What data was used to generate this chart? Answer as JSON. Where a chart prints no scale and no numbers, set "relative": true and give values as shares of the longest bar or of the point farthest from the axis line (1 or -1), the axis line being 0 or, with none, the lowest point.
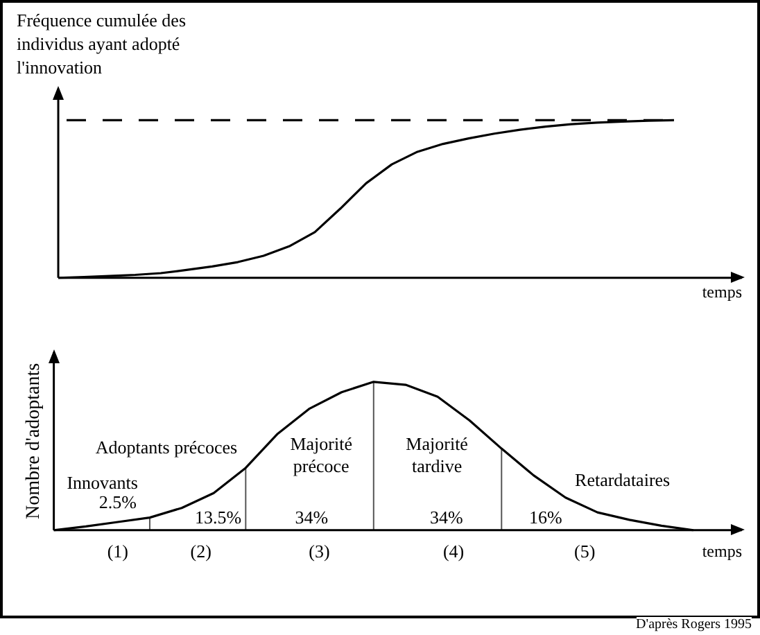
{
  "chart_data": [
    {
      "type": "line",
      "relative": true,
      "ylabel": "Fréquence cumulée des individus ayant adopté l'innovation",
      "xlabel": "temps",
      "grid": false,
      "legend": false,
      "marker": "none",
      "categories": [
        null,
        null,
        null,
        null,
        null,
        null,
        null,
        null,
        null,
        null,
        null,
        null,
        null,
        null,
        null,
        null,
        null,
        null,
        null,
        null,
        null,
        null,
        null,
        null,
        null
      ],
      "series": [
        {
          "color": "#000000",
          "values": [
            0,
            0.005,
            0.012,
            0.019,
            0.03,
            0.05,
            0.072,
            0.1,
            0.14,
            0.2,
            0.29,
            0.44,
            0.6,
            0.72,
            0.8,
            0.85,
            0.885,
            0.915,
            0.94,
            0.96,
            0.975,
            0.985,
            0.992,
            0.997,
            1
          ]
        }
      ],
      "ref_lines": [
        {
          "axis": "y",
          "value": 1,
          "line_style": "dashed",
          "color": "#000000"
        }
      ]
    },
    {
      "type": "line",
      "relative": true,
      "ylabel": "Nombre d'adoptants",
      "xlabel": "temps",
      "grid": false,
      "legend": false,
      "marker": "none",
      "categories": [
        null,
        null,
        null,
        null,
        null,
        null,
        null,
        null,
        null,
        null,
        null,
        null,
        null,
        null,
        null,
        null,
        null,
        null,
        null,
        null,
        null
      ],
      "series": [
        {
          "color": "#000000",
          "values": [
            0,
            0.025,
            0.055,
            0.085,
            0.15,
            0.25,
            0.42,
            0.65,
            0.82,
            0.93,
            1,
            0.98,
            0.9,
            0.74,
            0.55,
            0.37,
            0.22,
            0.12,
            0.07,
            0.03,
            0
          ]
        }
      ],
      "annotations": [
        "Innovants",
        "2.5%",
        "Adoptants précoces",
        "13.5%",
        "Majorité\nprécoce",
        "34%",
        "Majorité\ntardive",
        "34%",
        "16%",
        "Retardataires",
        "(1)",
        "(2)",
        "(3)",
        "(4)",
        "(5)",
        "D'après Rogers 1995"
      ]
    }
  ]
}
